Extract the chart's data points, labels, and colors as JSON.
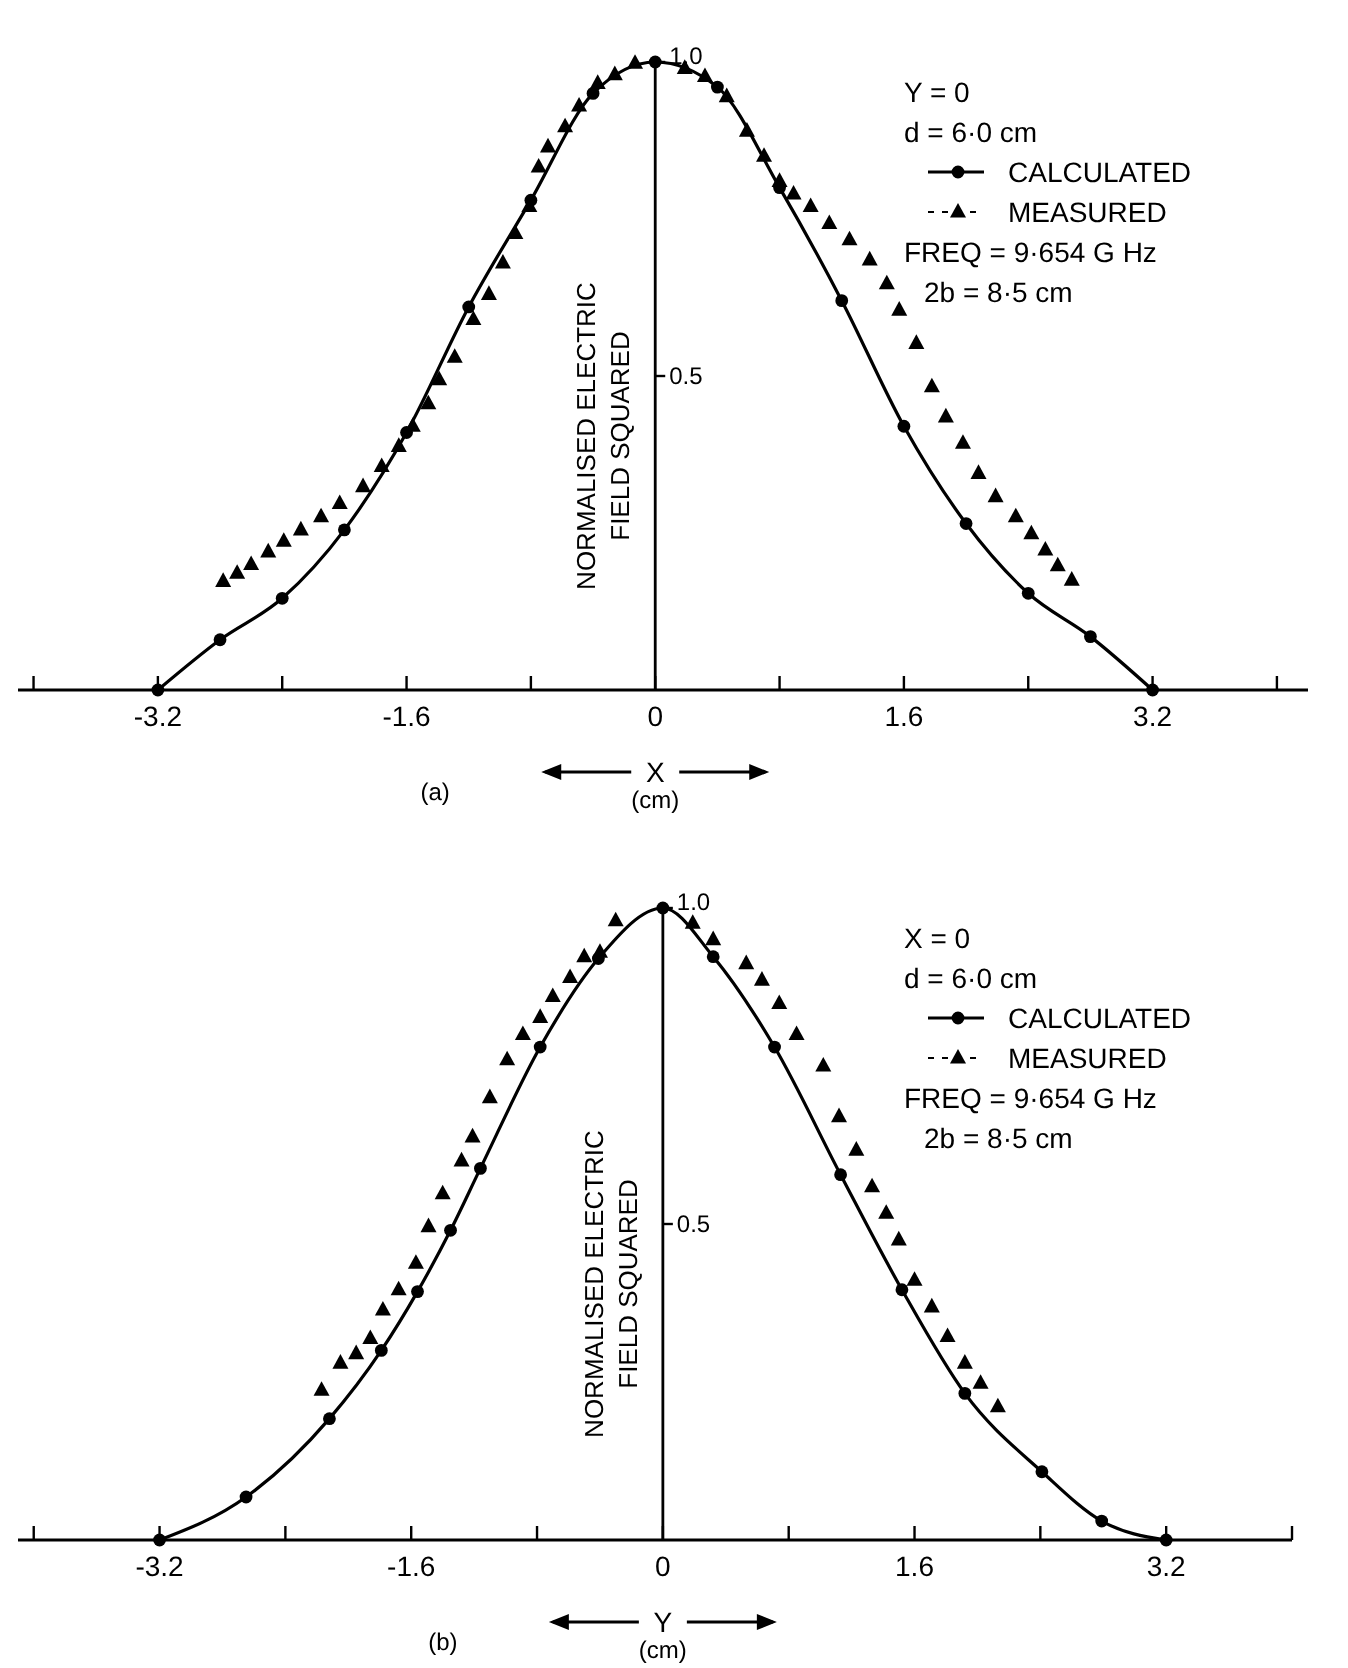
{
  "chart_data": [
    {
      "type": "line",
      "title": "(a)",
      "xlabel": "X (cm)",
      "ylabel": "NORMALISED ELECTRIC FIELD SQUARED",
      "xlim": [
        -4.1,
        4.2
      ],
      "ylim": [
        0,
        1
      ],
      "xticks": [
        {
          "value": -4.0,
          "label": null
        },
        -3.2,
        {
          "value": -2.4,
          "label": null
        },
        -1.6,
        {
          "value": -0.8,
          "label": null
        },
        0,
        {
          "value": 0.8,
          "label": null
        },
        1.6,
        {
          "value": 2.4,
          "label": null
        },
        3.2,
        {
          "value": 4.0,
          "label": null
        }
      ],
      "yticks": [
        0.5,
        {
          "value": 1.0,
          "label": "1.0"
        }
      ],
      "legend": "top right",
      "grid": false,
      "annotations": [
        "Y = 0",
        "d = 6·0 cm",
        "FREQ = 9·654 G Hz",
        "2b = 8·5 cm"
      ],
      "series": [
        {
          "name": "CALCULATED",
          "color": "#000000",
          "marker": "circle",
          "line_style": "solid",
          "x": [
            -3.2,
            -2.8,
            -2.4,
            -2.0,
            -1.6,
            -1.2,
            -0.8,
            -0.4,
            0,
            0.4,
            0.8,
            1.2,
            1.6,
            2.0,
            2.4,
            2.8,
            3.2
          ],
          "values": [
            0,
            0.08,
            0.146,
            0.255,
            0.41,
            0.61,
            0.78,
            0.95,
            1.0,
            0.96,
            0.8,
            0.62,
            0.42,
            0.265,
            0.154,
            0.085,
            0
          ]
        },
        {
          "name": "MEASURED",
          "type": "scatter",
          "color": "#000000",
          "marker": "triangle",
          "x": [
            -2.78,
            -2.69,
            -2.6,
            -2.49,
            -2.39,
            -2.28,
            -2.15,
            -2.03,
            -1.88,
            -1.76,
            -1.65,
            -1.56,
            -1.46,
            -1.39,
            -1.29,
            -1.17,
            -1.07,
            -0.98,
            -0.9,
            -0.81,
            -0.75,
            -0.69,
            -0.58,
            -0.49,
            -0.37,
            -0.26,
            -0.13,
            0.19,
            0.32,
            0.46,
            0.59,
            0.7,
            0.8,
            0.89,
            1.0,
            1.12,
            1.25,
            1.38,
            1.49,
            1.57,
            1.68,
            1.78,
            1.87,
            1.98,
            2.08,
            2.19,
            2.32,
            2.42,
            2.51,
            2.59,
            2.68
          ],
          "values": [
            0.173,
            0.186,
            0.2,
            0.22,
            0.237,
            0.255,
            0.276,
            0.297,
            0.324,
            0.356,
            0.388,
            0.42,
            0.456,
            0.494,
            0.53,
            0.59,
            0.63,
            0.68,
            0.727,
            0.77,
            0.833,
            0.865,
            0.897,
            0.93,
            0.966,
            0.98,
            0.998,
            0.99,
            0.977,
            0.945,
            0.89,
            0.85,
            0.81,
            0.79,
            0.77,
            0.743,
            0.717,
            0.685,
            0.647,
            0.605,
            0.552,
            0.483,
            0.435,
            0.393,
            0.345,
            0.308,
            0.276,
            0.249,
            0.223,
            0.198,
            0.175
          ]
        }
      ]
    },
    {
      "type": "line",
      "title": "(b)",
      "xlabel": "Y (cm)",
      "ylabel": "NORMALISED ELECTRIC FIELD SQUARED",
      "xlim": [
        -4.1,
        4.0
      ],
      "ylim": [
        0,
        1
      ],
      "xticks": [
        {
          "value": -4.0,
          "label": null
        },
        -3.2,
        {
          "value": -2.4,
          "label": null
        },
        -1.6,
        {
          "value": -0.8,
          "label": null
        },
        0,
        {
          "value": 0.8,
          "label": null
        },
        1.6,
        {
          "value": 2.4,
          "label": null
        },
        3.2,
        {
          "value": 4.0,
          "label": null
        }
      ],
      "yticks": [
        0.5,
        {
          "value": 1.0,
          "label": "1.0"
        }
      ],
      "legend": "top right",
      "grid": false,
      "annotations": [
        "X = 0",
        "d = 6·0 cm",
        "FREQ = 9·654 G Hz",
        "2b = 8·5 cm"
      ],
      "series": [
        {
          "name": "CALCULATED",
          "color": "#000000",
          "marker": "circle",
          "line_style": "solid",
          "x": [
            -3.2,
            -2.65,
            -2.12,
            -1.79,
            -1.56,
            -1.35,
            -1.16,
            -0.78,
            -0.41,
            0,
            0.32,
            0.71,
            1.13,
            1.52,
            1.92,
            2.41,
            2.79,
            3.2
          ],
          "values": [
            0,
            0.068,
            0.192,
            0.3,
            0.393,
            0.49,
            0.588,
            0.78,
            0.92,
            1.0,
            0.923,
            0.78,
            0.578,
            0.396,
            0.232,
            0.108,
            0.03,
            0
          ]
        },
        {
          "name": "MEASURED",
          "type": "scatter",
          "color": "#000000",
          "marker": "triangle",
          "x": [
            -2.17,
            -2.05,
            -1.95,
            -1.86,
            -1.78,
            -1.68,
            -1.57,
            -1.49,
            -1.4,
            -1.28,
            -1.21,
            -1.1,
            -0.99,
            -0.89,
            -0.78,
            -0.7,
            -0.59,
            -0.5,
            -0.4,
            -0.3,
            0.19,
            0.32,
            0.53,
            0.63,
            0.74,
            0.85,
            1.02,
            1.12,
            1.23,
            1.33,
            1.42,
            1.5,
            1.6,
            1.71,
            1.81,
            1.92,
            2.02,
            2.13
          ],
          "values": [
            0.237,
            0.28,
            0.295,
            0.319,
            0.364,
            0.396,
            0.438,
            0.496,
            0.548,
            0.6,
            0.638,
            0.7,
            0.76,
            0.8,
            0.827,
            0.86,
            0.89,
            0.923,
            0.93,
            0.98,
            0.976,
            0.95,
            0.912,
            0.886,
            0.849,
            0.8,
            0.75,
            0.67,
            0.617,
            0.559,
            0.517,
            0.475,
            0.411,
            0.369,
            0.322,
            0.28,
            0.248,
            0.211
          ]
        }
      ]
    }
  ]
}
